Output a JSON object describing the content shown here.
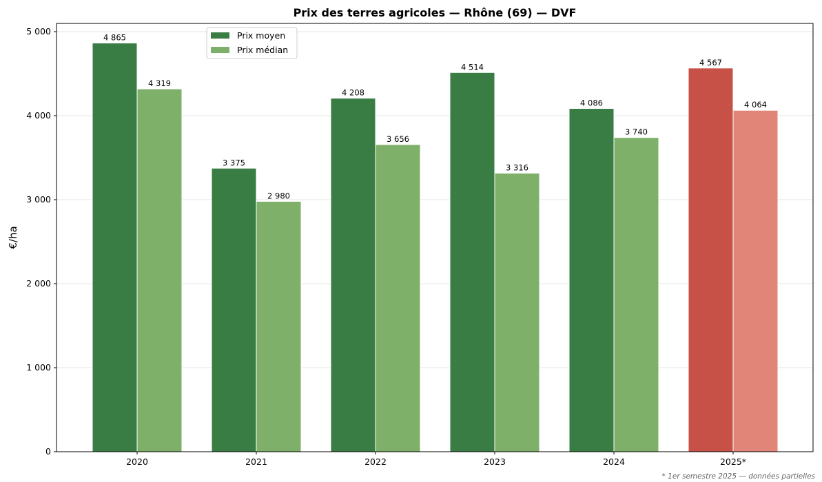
{
  "chart_data": {
    "type": "bar",
    "title": "Prix des terres agricoles — Rhône (69) — DVF",
    "xlabel": "",
    "ylabel": "€/ha",
    "ylim": [
      0,
      5100
    ],
    "yticks": [
      0,
      1000,
      2000,
      3000,
      4000,
      5000
    ],
    "ytick_labels": [
      "0",
      "1 000",
      "2 000",
      "3 000",
      "4 000",
      "5 000"
    ],
    "grid": "horizontal",
    "legend_position": "top-left",
    "categories": [
      "2020",
      "2021",
      "2022",
      "2023",
      "2024",
      "2025*"
    ],
    "series": [
      {
        "name": "Prix moyen",
        "values": [
          4865,
          3375,
          4208,
          4514,
          4086,
          4567
        ],
        "labels": [
          "4 865",
          "3 375",
          "4 208",
          "4 514",
          "4 086",
          "4 567"
        ],
        "color": "#3a7d44",
        "highlight_color": "#c75146"
      },
      {
        "name": "Prix médian",
        "values": [
          4319,
          2980,
          3656,
          3316,
          3740,
          4064
        ],
        "labels": [
          "4 319",
          "2 980",
          "3 656",
          "3 316",
          "3 740",
          "4 064"
        ],
        "color": "#7fb069",
        "highlight_color": "#e08577"
      }
    ],
    "highlighted_category": "2025*",
    "footnote": "* 1er semestre 2025 — données partielles"
  }
}
